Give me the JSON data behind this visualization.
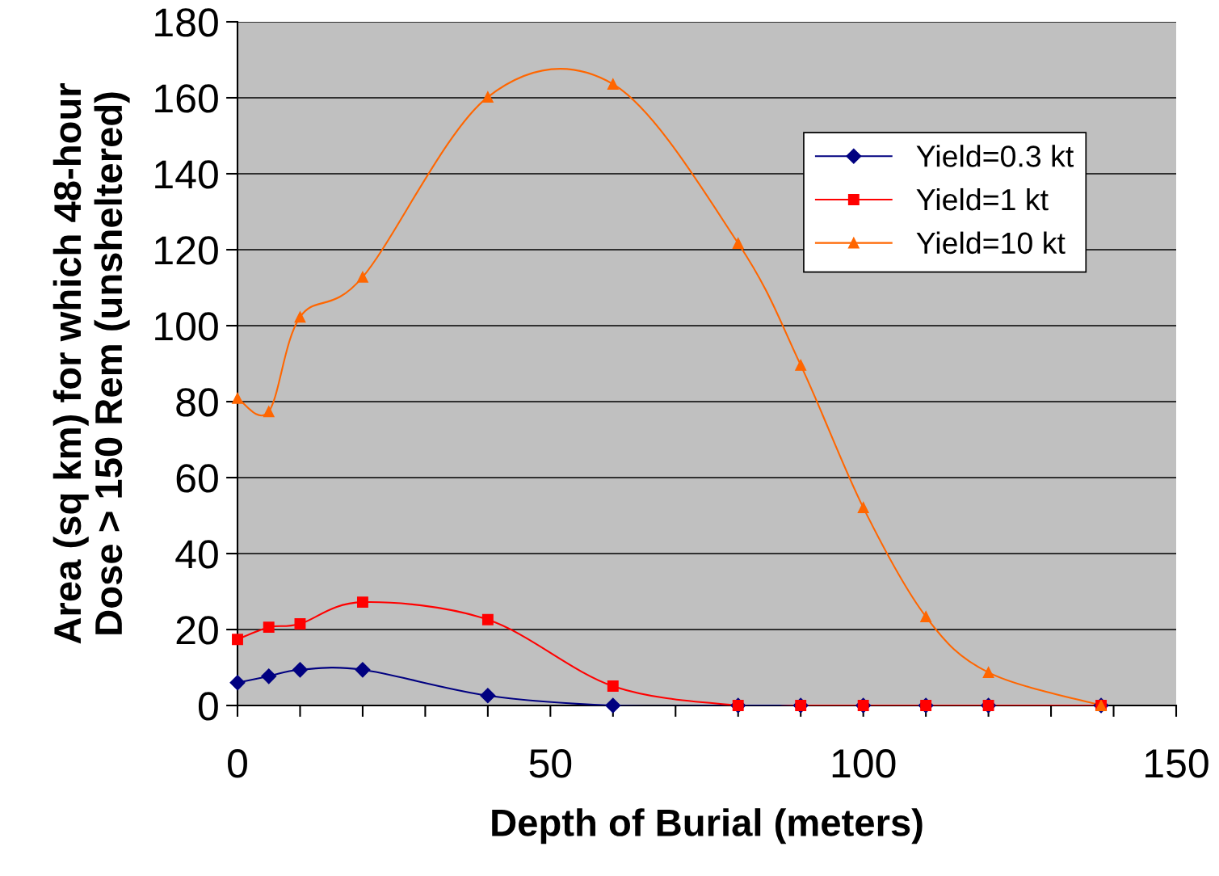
{
  "chart_data": {
    "type": "line",
    "xlabel": "Depth of Burial (meters)",
    "ylabel": "Area (sq km) for which 48-hour\nDose > 150 Rem (unsheltered)",
    "x": [
      0,
      5,
      10,
      20,
      40,
      60,
      80,
      90,
      100,
      110,
      120,
      138
    ],
    "series": [
      {
        "name": "Yield=0.3 kt",
        "color": "#000080",
        "marker": "diamond",
        "values": [
          6,
          7.7,
          9.4,
          9.4,
          2.6,
          0,
          0,
          0,
          0,
          0,
          0,
          0
        ]
      },
      {
        "name": "Yield=1 kt",
        "color": "#ff0000",
        "marker": "square",
        "values": [
          17.4,
          20.6,
          21.5,
          27.2,
          22.6,
          5.1,
          0,
          0,
          0,
          0,
          0,
          0
        ]
      },
      {
        "name": "Yield=10 kt",
        "color": "#ff6600",
        "marker": "triangle",
        "values": [
          80.9,
          77.4,
          102.3,
          112.8,
          160.2,
          163.6,
          121.7,
          89.6,
          52.1,
          23.4,
          8.7,
          0
        ]
      }
    ],
    "xlim": [
      0,
      150
    ],
    "xticks": [
      0,
      {
        "value": 10,
        "label": null
      },
      {
        "value": 20,
        "label": null
      },
      {
        "value": 30,
        "label": null
      },
      {
        "value": 40,
        "label": null
      },
      50,
      {
        "value": 60,
        "label": null
      },
      {
        "value": 70,
        "label": null
      },
      {
        "value": 80,
        "label": null
      },
      {
        "value": 90,
        "label": null
      },
      100,
      {
        "value": 110,
        "label": null
      },
      {
        "value": 120,
        "label": null
      },
      {
        "value": 130,
        "label": null
      },
      {
        "value": 140,
        "label": null
      },
      150
    ],
    "ylim": [
      0,
      180
    ],
    "yticks": [
      0,
      20,
      40,
      60,
      80,
      100,
      120,
      140,
      160,
      180
    ],
    "grid": "y",
    "legend": "top right",
    "line_style": "solid"
  }
}
